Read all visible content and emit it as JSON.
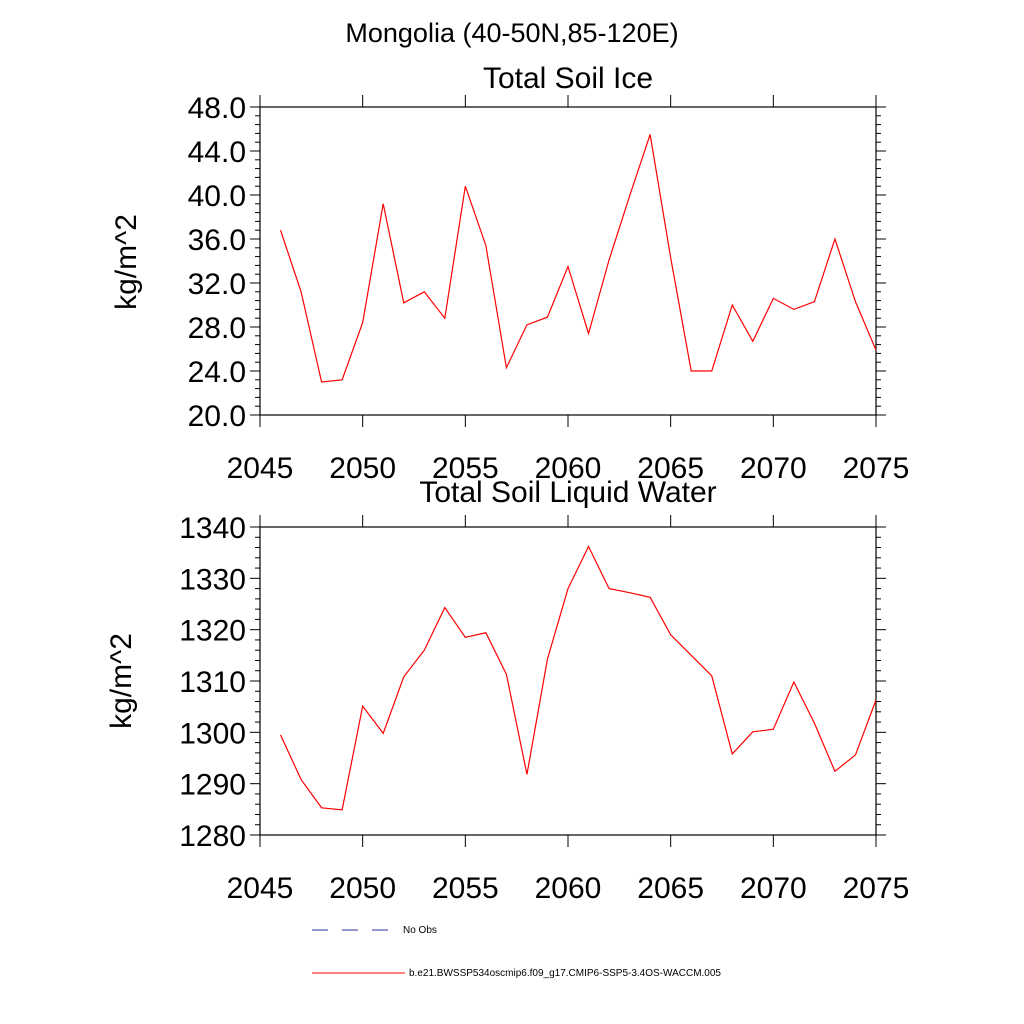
{
  "figure": {
    "title": "Mongolia (40-50N,85-120E)"
  },
  "colors": {
    "model": "#ff0000",
    "obs": "#3030a0"
  },
  "legend": {
    "obs_label": "No Obs",
    "model_label": "b.e21.BWSSP534oscmip6.f09_g17.CMIP6-SSP5-3.4OS-WACCM.005"
  },
  "chart_data": [
    {
      "type": "line",
      "title": "Total Soil Ice",
      "xlabel": "",
      "ylabel": "kg/m^2",
      "xlim": [
        2045,
        2075
      ],
      "ylim": [
        20,
        48
      ],
      "x_ticks": [
        2045,
        2050,
        2055,
        2060,
        2065,
        2070,
        2075
      ],
      "y_ticks": [
        20,
        24,
        28,
        32,
        36,
        40,
        44,
        48
      ],
      "y_tick_labels": [
        "20.0",
        "24.0",
        "28.0",
        "32.0",
        "36.0",
        "40.0",
        "44.0",
        "48.0"
      ],
      "x_tick_labels": [
        "2045",
        "2050",
        "2055",
        "2060",
        "2065",
        "2070",
        "2075"
      ],
      "series": [
        {
          "x": [
            2046,
            2047,
            2048,
            2049,
            2050,
            2051,
            2052,
            2053,
            2054,
            2055,
            2056,
            2057,
            2058,
            2059,
            2060,
            2061,
            2062,
            2063,
            2064,
            2065,
            2066,
            2067,
            2068,
            2069,
            2070,
            2071,
            2072,
            2073,
            2074,
            2075
          ],
          "values": [
            36.8,
            31.2,
            23.0,
            23.2,
            28.4,
            39.2,
            30.2,
            31.2,
            28.8,
            40.8,
            35.4,
            24.3,
            28.2,
            28.9,
            33.5,
            27.4,
            34.1,
            39.9,
            45.5,
            34.3,
            24.0,
            24.0,
            30.0,
            26.7,
            30.6,
            29.6,
            30.3,
            36.0,
            30.3,
            25.9
          ]
        }
      ]
    },
    {
      "type": "line",
      "title": "Total Soil Liquid Water",
      "xlabel": "",
      "ylabel": "kg/m^2",
      "xlim": [
        2045,
        2075
      ],
      "ylim": [
        1280,
        1340
      ],
      "x_ticks": [
        2045,
        2050,
        2055,
        2060,
        2065,
        2070,
        2075
      ],
      "y_ticks": [
        1280,
        1290,
        1300,
        1310,
        1320,
        1330,
        1340
      ],
      "y_tick_labels": [
        "1280",
        "1290",
        "1300",
        "1310",
        "1320",
        "1330",
        "1340"
      ],
      "x_tick_labels": [
        "2045",
        "2050",
        "2055",
        "2060",
        "2065",
        "2070",
        "2075"
      ],
      "series": [
        {
          "x": [
            2046,
            2047,
            2048,
            2049,
            2050,
            2051,
            2052,
            2053,
            2054,
            2055,
            2056,
            2057,
            2058,
            2059,
            2060,
            2061,
            2062,
            2063,
            2064,
            2065,
            2066,
            2067,
            2068,
            2069,
            2070,
            2071,
            2072,
            2073,
            2074,
            2075
          ],
          "values": [
            1299.5,
            1290.8,
            1285.3,
            1284.9,
            1305.1,
            1299.8,
            1310.8,
            1316.0,
            1324.3,
            1318.5,
            1319.4,
            1311.3,
            1291.8,
            1314.3,
            1328.0,
            1336.2,
            1328.0,
            1327.2,
            1326.3,
            1319.0,
            1315.0,
            1311.0,
            1295.8,
            1300.1,
            1300.6,
            1309.8,
            1301.8,
            1292.4,
            1295.6,
            1306.3
          ]
        }
      ]
    }
  ]
}
